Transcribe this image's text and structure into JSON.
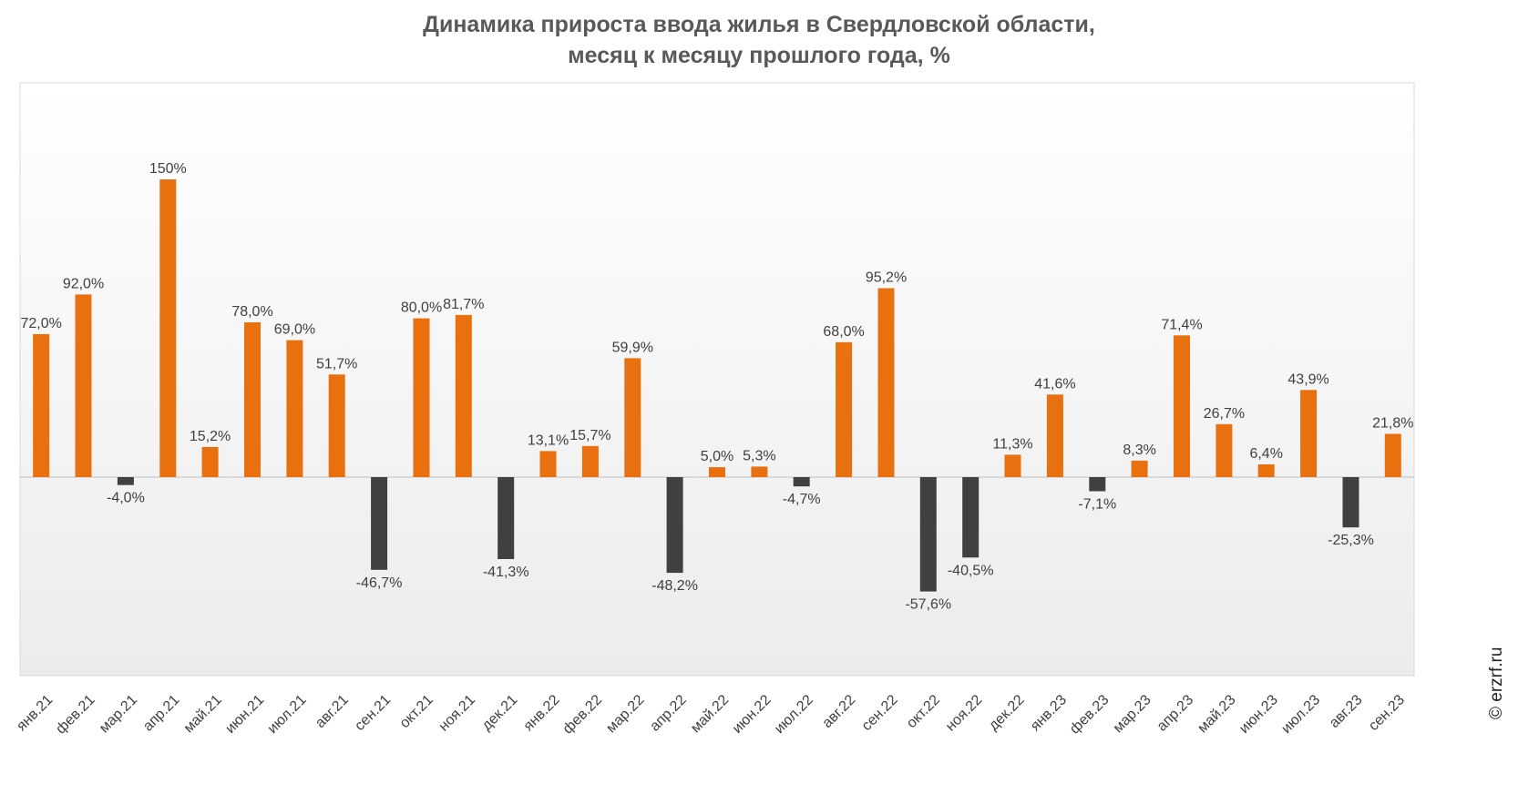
{
  "title_line1": "Динамика прироста ввода жилья в Свердловской области,",
  "title_line2": "месяц к месяцу прошлого года, %",
  "watermark": "© erzrf.ru",
  "colors": {
    "positive": "#E8700F",
    "negative": "#404040",
    "label": "#404040",
    "axis": "#BFBFBF"
  },
  "chart_data": {
    "type": "bar",
    "title": "Динамика прироста ввода жилья в Свердловской области, месяц к месяцу прошлого года, %",
    "grid": false,
    "legend": "none",
    "categories": [
      "янв.21",
      "фев.21",
      "мар.21",
      "апр.21",
      "май.21",
      "июн.21",
      "июл.21",
      "авг.21",
      "сен.21",
      "окт.21",
      "ноя.21",
      "дек.21",
      "янв.22",
      "фев.22",
      "мар.22",
      "апр.22",
      "май.22",
      "июн.22",
      "июл.22",
      "авг.22",
      "сен.22",
      "окт.22",
      "ноя.22",
      "дек.22",
      "янв.23",
      "фев.23",
      "мар.23",
      "апр.23",
      "май.23",
      "июн.23",
      "июл.23",
      "авг.23",
      "сен.23"
    ],
    "values": [
      72.0,
      92.0,
      -4.0,
      150,
      15.2,
      78.0,
      69.0,
      51.7,
      -46.7,
      80.0,
      81.7,
      -41.3,
      13.1,
      15.7,
      59.9,
      -48.2,
      5.0,
      5.3,
      -4.7,
      68.0,
      95.2,
      -57.6,
      -40.5,
      11.3,
      41.6,
      -7.1,
      8.3,
      71.4,
      26.7,
      6.4,
      43.9,
      -25.3,
      21.8
    ],
    "labels": [
      "72,0%",
      "92,0%",
      "-4,0%",
      "150%",
      "15,2%",
      "78,0%",
      "69,0%",
      "51,7%",
      "-46,7%",
      "80,0%",
      "81,7%",
      "-41,3%",
      "13,1%",
      "15,7%",
      "59,9%",
      "-48,2%",
      "5,0%",
      "5,3%",
      "-4,7%",
      "68,0%",
      "95,2%",
      "-57,6%",
      "-40,5%",
      "11,3%",
      "41,6%",
      "-7,1%",
      "8,3%",
      "71,4%",
      "26,7%",
      "6,4%",
      "43,9%",
      "-25,3%",
      "21,8%"
    ]
  }
}
